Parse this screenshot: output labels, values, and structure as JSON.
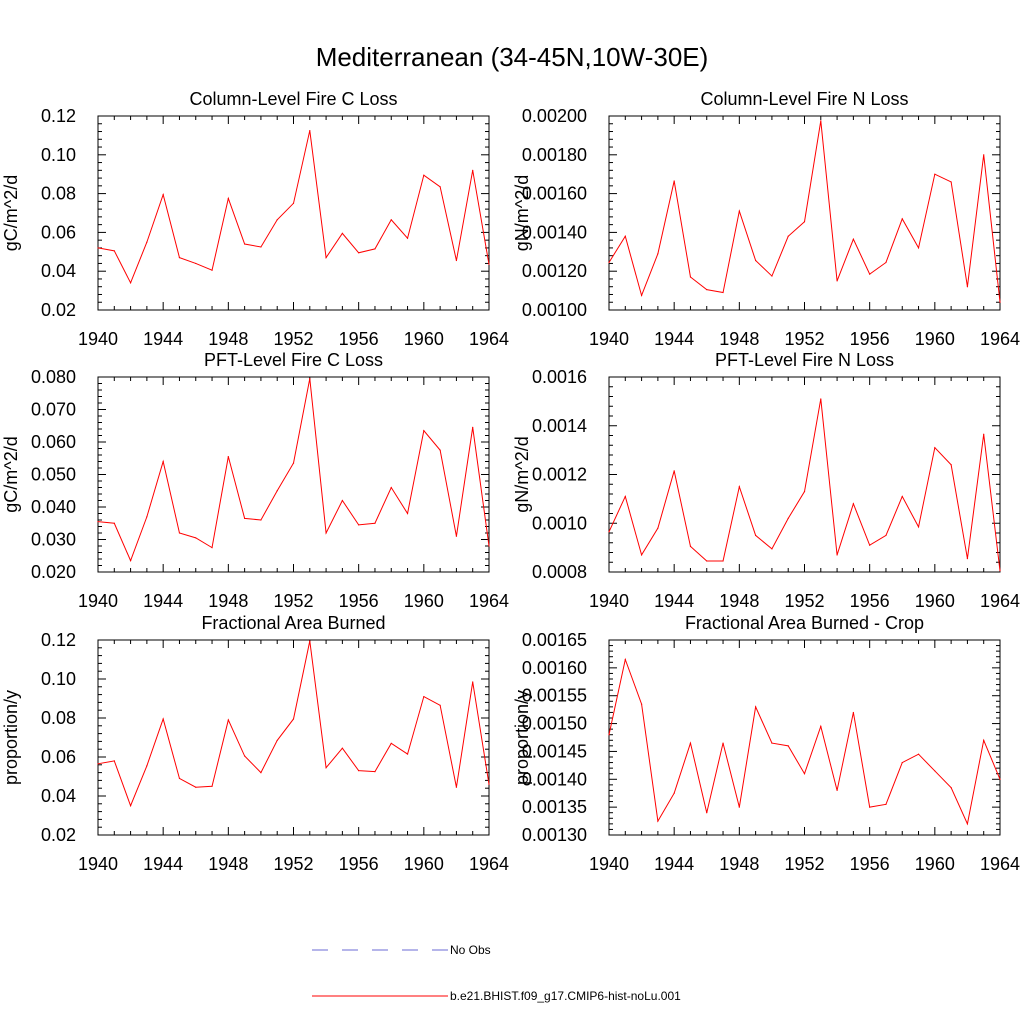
{
  "figure": {
    "title": "Mediterranean (34-45N,10W-30E)"
  },
  "legend": {
    "items": [
      {
        "label": "No Obs",
        "color": "#6b6bd6",
        "style": "dashed"
      },
      {
        "label": "b.e21.BHIST.f09_g17.CMIP6-hist-noLu.001",
        "color": "#ff0000",
        "style": "solid"
      }
    ]
  },
  "chart_data": [
    {
      "type": "line",
      "title": "Column-Level Fire C Loss",
      "ylabel": "gC/m^2/d",
      "xlim": [
        1940,
        1964
      ],
      "ylim": [
        0.02,
        0.12
      ],
      "xticks": [
        "1940",
        "1944",
        "1948",
        "1952",
        "1956",
        "1960",
        "1964"
      ],
      "yticks": [
        "0.02",
        "0.04",
        "0.06",
        "0.08",
        "0.10",
        "0.12"
      ],
      "x": [
        1940,
        1941,
        1942,
        1943,
        1944,
        1945,
        1946,
        1947,
        1948,
        1949,
        1950,
        1951,
        1952,
        1953,
        1954,
        1955,
        1956,
        1957,
        1958,
        1959,
        1960,
        1961,
        1962,
        1963,
        1964
      ],
      "series": [
        {
          "name": "b.e21.BHIST.f09_g17.CMIP6-hist-noLu.001",
          "color": "#ff0000",
          "values": [
            0.052,
            0.0505,
            0.034,
            0.055,
            0.0795,
            0.047,
            0.044,
            0.0405,
            0.0775,
            0.054,
            0.0525,
            0.0665,
            0.075,
            0.1125,
            0.047,
            0.0595,
            0.0495,
            0.0515,
            0.0665,
            0.057,
            0.0895,
            0.0835,
            0.0455,
            0.092,
            0.0435
          ]
        }
      ]
    },
    {
      "type": "line",
      "title": "Column-Level Fire N Loss",
      "ylabel": "gN/m^2/d",
      "xlim": [
        1940,
        1964
      ],
      "ylim": [
        0.001,
        0.002
      ],
      "xticks": [
        "1940",
        "1944",
        "1948",
        "1952",
        "1956",
        "1960",
        "1964"
      ],
      "yticks": [
        "0.00100",
        "0.00120",
        "0.00140",
        "0.00160",
        "0.00180",
        "0.00200"
      ],
      "x": [
        1940,
        1941,
        1942,
        1943,
        1944,
        1945,
        1946,
        1947,
        1948,
        1949,
        1950,
        1951,
        1952,
        1953,
        1954,
        1955,
        1956,
        1957,
        1958,
        1959,
        1960,
        1961,
        1962,
        1963,
        1964
      ],
      "series": [
        {
          "name": "b.e21.BHIST.f09_g17.CMIP6-hist-noLu.001",
          "color": "#ff0000",
          "values": [
            0.001245,
            0.00138,
            0.001075,
            0.00129,
            0.001665,
            0.00117,
            0.001105,
            0.00109,
            0.00151,
            0.001255,
            0.001175,
            0.00138,
            0.001455,
            0.001975,
            0.00115,
            0.001365,
            0.001185,
            0.001245,
            0.00147,
            0.00132,
            0.0017,
            0.00166,
            0.00112,
            0.0018,
            0.00104
          ]
        }
      ]
    },
    {
      "type": "line",
      "title": "PFT-Level Fire C Loss",
      "ylabel": "gC/m^2/d",
      "xlim": [
        1940,
        1964
      ],
      "ylim": [
        0.02,
        0.08
      ],
      "xticks": [
        "1940",
        "1944",
        "1948",
        "1952",
        "1956",
        "1960",
        "1964"
      ],
      "yticks": [
        "0.020",
        "0.030",
        "0.040",
        "0.050",
        "0.060",
        "0.070",
        "0.080"
      ],
      "x": [
        1940,
        1941,
        1942,
        1943,
        1944,
        1945,
        1946,
        1947,
        1948,
        1949,
        1950,
        1951,
        1952,
        1953,
        1954,
        1955,
        1956,
        1957,
        1958,
        1959,
        1960,
        1961,
        1962,
        1963,
        1964
      ],
      "series": [
        {
          "name": "b.e21.BHIST.f09_g17.CMIP6-hist-noLu.001",
          "color": "#ff0000",
          "values": [
            0.0355,
            0.035,
            0.0235,
            0.037,
            0.054,
            0.032,
            0.0305,
            0.0275,
            0.0555,
            0.0365,
            0.036,
            0.045,
            0.0535,
            0.0795,
            0.032,
            0.042,
            0.0345,
            0.035,
            0.046,
            0.038,
            0.0635,
            0.0575,
            0.031,
            0.0645,
            0.028
          ]
        }
      ]
    },
    {
      "type": "line",
      "title": "PFT-Level Fire N Loss",
      "ylabel": "gN/m^2/d",
      "xlim": [
        1940,
        1964
      ],
      "ylim": [
        0.0008,
        0.0016
      ],
      "xticks": [
        "1940",
        "1944",
        "1948",
        "1952",
        "1956",
        "1960",
        "1964"
      ],
      "yticks": [
        "0.0008",
        "0.0010",
        "0.0012",
        "0.0014",
        "0.0016"
      ],
      "x": [
        1940,
        1941,
        1942,
        1943,
        1944,
        1945,
        1946,
        1947,
        1948,
        1949,
        1950,
        1951,
        1952,
        1953,
        1954,
        1955,
        1956,
        1957,
        1958,
        1959,
        1960,
        1961,
        1962,
        1963,
        1964
      ],
      "series": [
        {
          "name": "b.e21.BHIST.f09_g17.CMIP6-hist-noLu.001",
          "color": "#ff0000",
          "values": [
            0.000965,
            0.00111,
            0.00087,
            0.00098,
            0.001215,
            0.000905,
            0.000845,
            0.000845,
            0.00115,
            0.00095,
            0.000895,
            0.00102,
            0.00113,
            0.00151,
            0.00087,
            0.00108,
            0.00091,
            0.00095,
            0.00111,
            0.000985,
            0.00131,
            0.00124,
            0.000855,
            0.001365,
            0.000805
          ]
        }
      ]
    },
    {
      "type": "line",
      "title": "Fractional Area Burned",
      "ylabel": "proportion/y",
      "xlim": [
        1940,
        1964
      ],
      "ylim": [
        0.02,
        0.12
      ],
      "xticks": [
        "1940",
        "1944",
        "1948",
        "1952",
        "1956",
        "1960",
        "1964"
      ],
      "yticks": [
        "0.02",
        "0.04",
        "0.06",
        "0.08",
        "0.10",
        "0.12"
      ],
      "x": [
        1940,
        1941,
        1942,
        1943,
        1944,
        1945,
        1946,
        1947,
        1948,
        1949,
        1950,
        1951,
        1952,
        1953,
        1954,
        1955,
        1956,
        1957,
        1958,
        1959,
        1960,
        1961,
        1962,
        1963,
        1964
      ],
      "series": [
        {
          "name": "b.e21.BHIST.f09_g17.CMIP6-hist-noLu.001",
          "color": "#ff0000",
          "values": [
            0.0565,
            0.058,
            0.035,
            0.0555,
            0.0795,
            0.049,
            0.0445,
            0.045,
            0.079,
            0.0605,
            0.052,
            0.0685,
            0.0795,
            0.1195,
            0.0545,
            0.0645,
            0.053,
            0.0525,
            0.067,
            0.0615,
            0.091,
            0.0865,
            0.0445,
            0.0985,
            0.046
          ]
        }
      ]
    },
    {
      "type": "line",
      "title": "Fractional Area Burned - Crop",
      "ylabel": "proportion/y",
      "xlim": [
        1940,
        1964
      ],
      "ylim": [
        0.0013,
        0.00165
      ],
      "xticks": [
        "1940",
        "1944",
        "1948",
        "1952",
        "1956",
        "1960",
        "1964"
      ],
      "yticks": [
        "0.00130",
        "0.00135",
        "0.00140",
        "0.00145",
        "0.00150",
        "0.00155",
        "0.00160",
        "0.00165"
      ],
      "x": [
        1940,
        1941,
        1942,
        1943,
        1944,
        1945,
        1946,
        1947,
        1948,
        1949,
        1950,
        1951,
        1952,
        1953,
        1954,
        1955,
        1956,
        1957,
        1958,
        1959,
        1960,
        1961,
        1962,
        1963,
        1964
      ],
      "series": [
        {
          "name": "b.e21.BHIST.f09_g17.CMIP6-hist-noLu.001",
          "color": "#ff0000",
          "values": [
            0.00148,
            0.001615,
            0.001535,
            0.001325,
            0.001375,
            0.001465,
            0.00134,
            0.001465,
            0.00135,
            0.00153,
            0.001465,
            0.00146,
            0.00141,
            0.001495,
            0.00138,
            0.00152,
            0.00135,
            0.001355,
            0.00143,
            0.001445,
            0.001415,
            0.001385,
            0.00132,
            0.00147,
            0.0014
          ]
        }
      ]
    }
  ]
}
